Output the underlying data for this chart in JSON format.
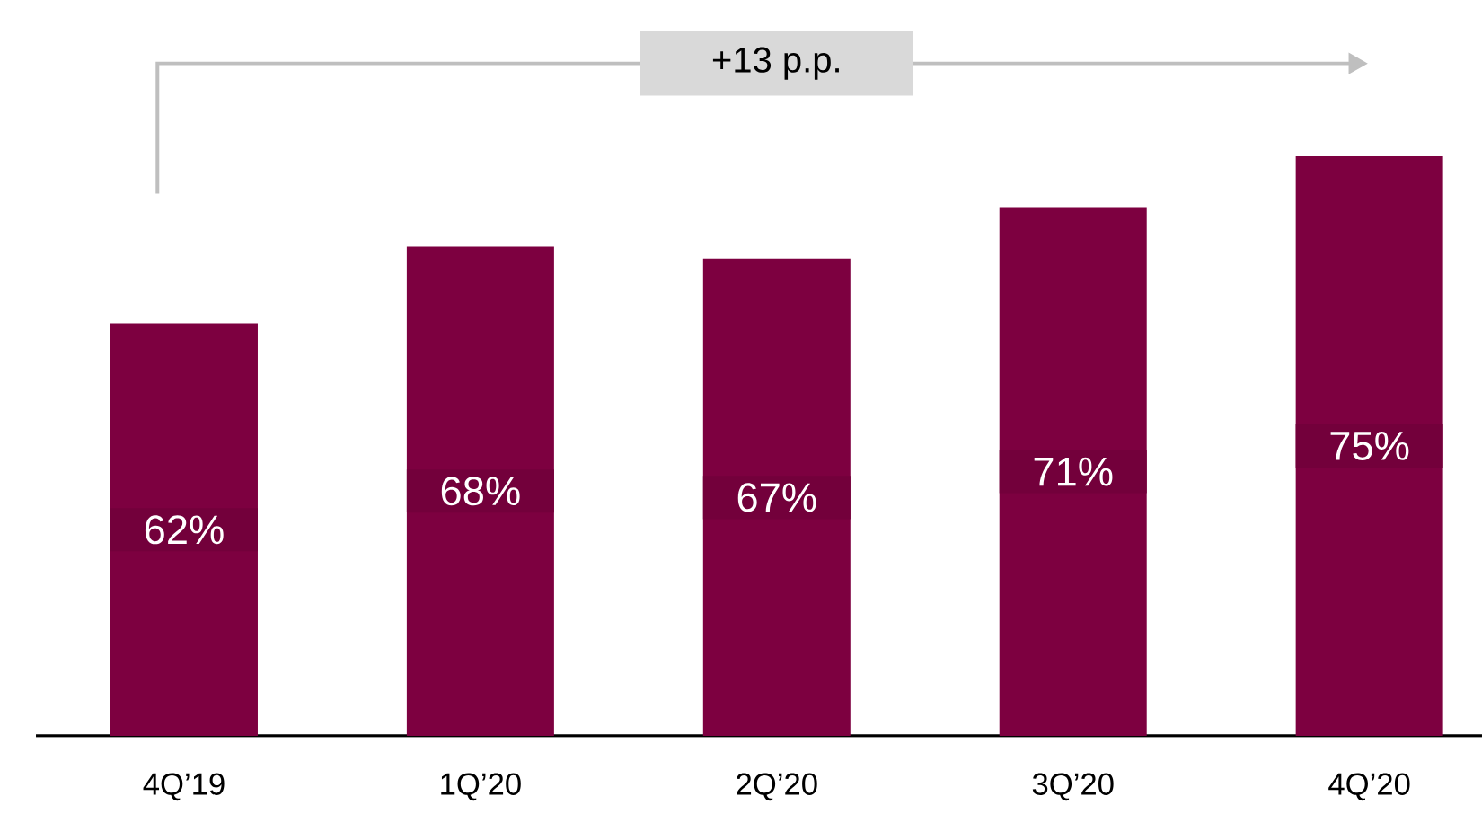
{
  "chart_data": {
    "type": "bar",
    "categories": [
      "4Q’19",
      "1Q’20",
      "2Q’20",
      "3Q’20",
      "4Q’20"
    ],
    "values": [
      62,
      68,
      67,
      71,
      75
    ],
    "value_labels": [
      "62%",
      "68%",
      "67%",
      "71%",
      "75%"
    ],
    "color": "#7d0040",
    "ylim": [
      30,
      75
    ],
    "annotations": [
      "+13 p.p."
    ]
  }
}
